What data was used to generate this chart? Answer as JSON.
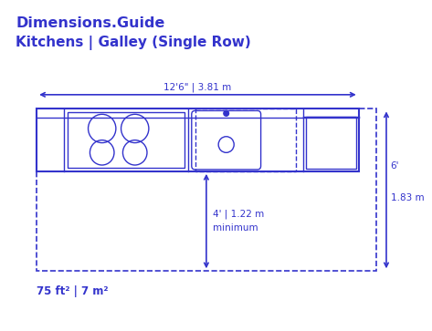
{
  "title_line1": "Dimensions.Guide",
  "title_line2": "Kitchens | Galley (Single Row)",
  "blue": "#3333cc",
  "bg_color": "#ffffff",
  "dim_width_label": "12'6\" | 3.81 m",
  "dim_height_label1": "6'",
  "dim_height_label2": "1.83 m",
  "dim_inner_label1": "4' | 1.22 m",
  "dim_inner_label2": "minimum",
  "area_label": "75 ft² | 7 m²"
}
